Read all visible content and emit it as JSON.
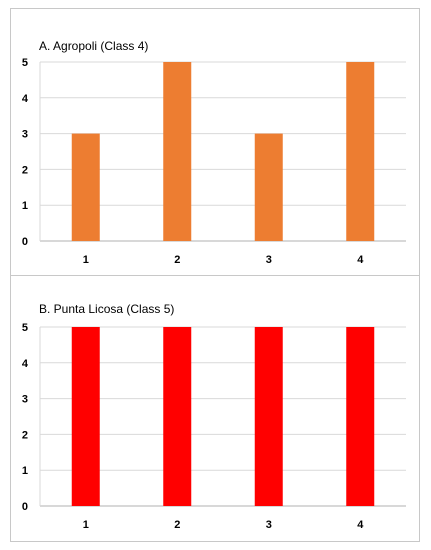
{
  "chart_data": [
    {
      "type": "bar",
      "title": "A. Agropoli (Class 4)",
      "categories": [
        "1",
        "2",
        "3",
        "4"
      ],
      "values": [
        3,
        5,
        3,
        5
      ],
      "ylim": [
        0,
        5
      ],
      "yticks": [
        "0",
        "1",
        "2",
        "3",
        "4",
        "5"
      ],
      "xlabel": "",
      "ylabel": "",
      "grid": true,
      "color": "#ED7D31"
    },
    {
      "type": "bar",
      "title": "B. Punta Licosa (Class 5)",
      "categories": [
        "1",
        "2",
        "3",
        "4"
      ],
      "values": [
        5,
        5,
        5,
        5
      ],
      "ylim": [
        0,
        5
      ],
      "yticks": [
        "0",
        "1",
        "2",
        "3",
        "4",
        "5"
      ],
      "xlabel": "",
      "ylabel": "",
      "grid": true,
      "color": "#FF0000"
    }
  ]
}
